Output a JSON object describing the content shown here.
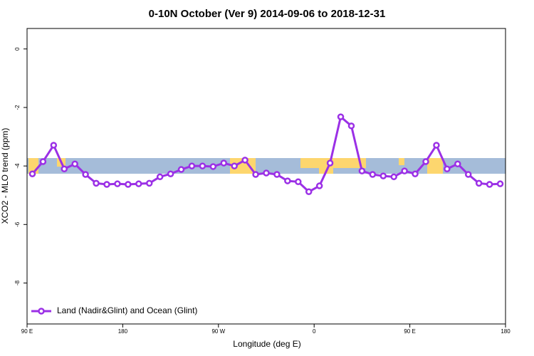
{
  "chart_data": {
    "type": "line",
    "title": "0-10N October (Ver 9)   2014-09-06 to 2018-12-31",
    "x_label": "Longitude (deg E)",
    "y_label": "XCO2 - MLO trend (ppm)",
    "xlim": [
      90,
      540
    ],
    "ylim": [
      -9.4,
      0.7
    ],
    "xticks": [
      {
        "value": 90,
        "label": "90 E"
      },
      180,
      {
        "value": 270,
        "label": "90 W"
      },
      {
        "value": 360,
        "label": "0"
      },
      {
        "value": 450,
        "label": "90 E"
      },
      {
        "value": 540,
        "label": "180"
      }
    ],
    "yticks": [
      0,
      -2,
      -4,
      -6,
      -8
    ],
    "legend": "bottom-left",
    "x": [
      95,
      105,
      115,
      125,
      135,
      145,
      155,
      165,
      175,
      185,
      195,
      205,
      215,
      225,
      235,
      245,
      255,
      265,
      275,
      285,
      295,
      305,
      315,
      325,
      335,
      345,
      355,
      365,
      375,
      385,
      395,
      405,
      415,
      425,
      435,
      445,
      455,
      465,
      475,
      485,
      495,
      505,
      515,
      525,
      535
    ],
    "series": [
      {
        "name": "Land (Nadir&Glint) and Ocean (Glint)",
        "color": "#9b30e6",
        "values": [
          -4.27,
          -3.85,
          -3.29,
          -4.1,
          -3.93,
          -4.29,
          -4.59,
          -4.63,
          -4.61,
          -4.63,
          -4.61,
          -4.59,
          -4.37,
          -4.27,
          -4.12,
          -4.0,
          -4.0,
          -4.02,
          -3.9,
          -4.0,
          -3.8,
          -4.29,
          -4.24,
          -4.29,
          -4.51,
          -4.54,
          -4.88,
          -4.68,
          -3.9,
          -2.32,
          -2.63,
          -4.17,
          -4.29,
          -4.34,
          -4.37,
          -4.17,
          -4.27,
          -3.85,
          -3.29,
          -4.1,
          -3.93,
          -4.29,
          -4.59,
          -4.63,
          -4.61
        ]
      }
    ]
  }
}
